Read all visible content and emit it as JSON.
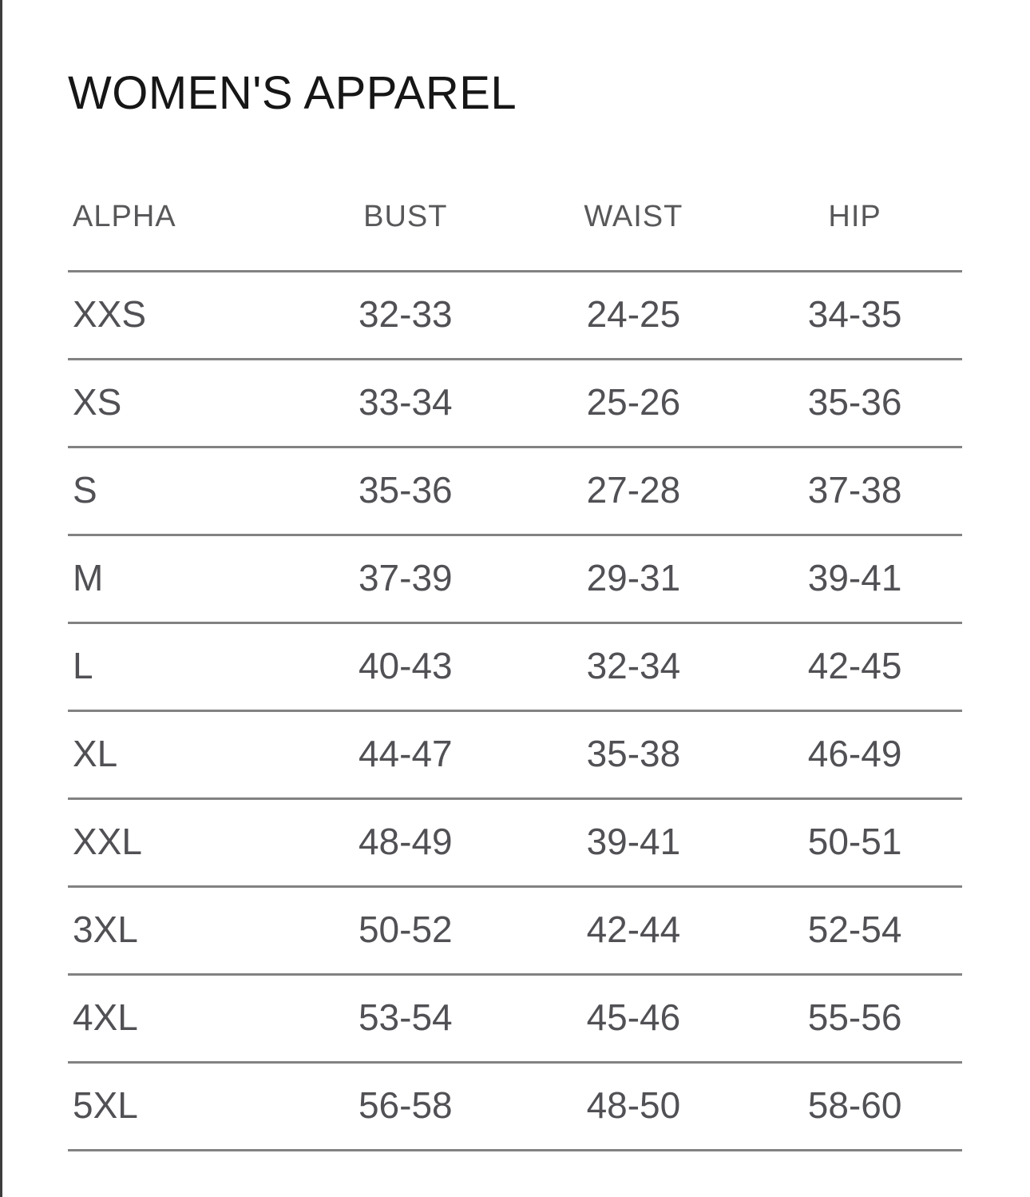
{
  "panel": {
    "title": "WOMEN'S APPAREL"
  },
  "size_chart": {
    "headers": [
      "ALPHA",
      "BUST",
      "WAIST",
      "HIP"
    ],
    "rows": [
      [
        "XXS",
        "32-33",
        "24-25",
        "34-35"
      ],
      [
        "XS",
        "33-34",
        "25-26",
        "35-36"
      ],
      [
        "S",
        "35-36",
        "27-28",
        "37-38"
      ],
      [
        "M",
        "37-39",
        "29-31",
        "39-41"
      ],
      [
        "L",
        "40-43",
        "32-34",
        "42-45"
      ],
      [
        "XL",
        "44-47",
        "35-38",
        "46-49"
      ],
      [
        "XXL",
        "48-49",
        "39-41",
        "50-51"
      ],
      [
        "3XL",
        "50-52",
        "42-44",
        "52-54"
      ],
      [
        "4XL",
        "53-54",
        "45-46",
        "55-56"
      ],
      [
        "5XL",
        "56-58",
        "48-50",
        "58-60"
      ]
    ]
  },
  "colors": {
    "background": "#ffffff",
    "title_text": "#161616",
    "header_text": "#58585a",
    "cell_text": "#515155",
    "divider": "#828282",
    "panel_edge": "#3d3d3d"
  }
}
